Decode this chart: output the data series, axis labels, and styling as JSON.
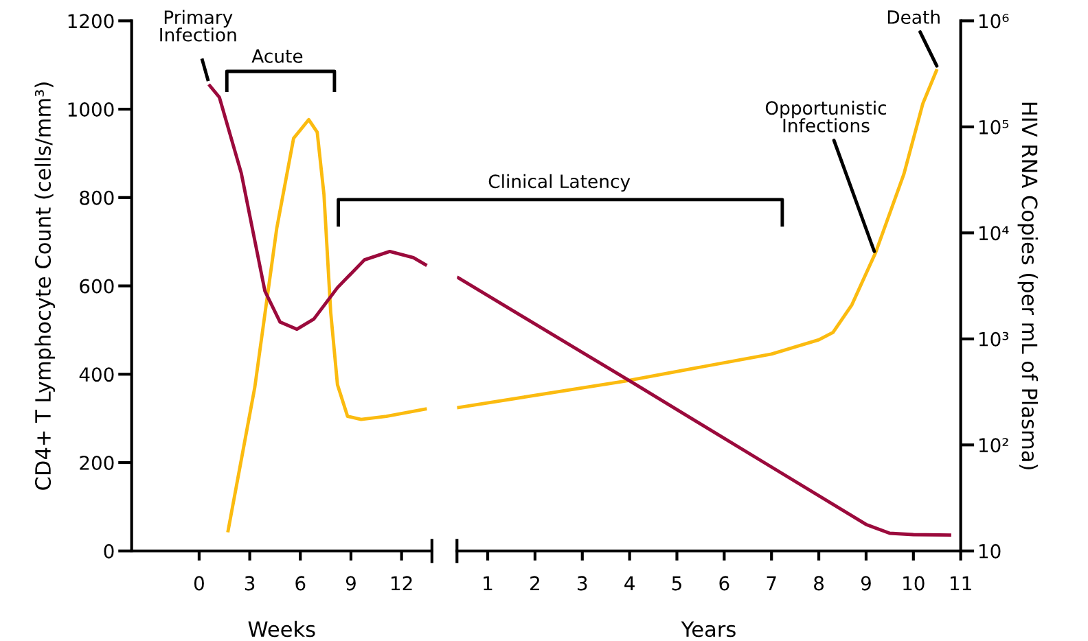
{
  "chart_data": [
    {
      "type": "line",
      "xlabel": "Weeks",
      "ylabel": "CD4+ T Lymphocyte Count (cells/mm³)",
      "log": "y2",
      "xlim": [
        -4,
        13.8
      ],
      "xticks": [
        0,
        3,
        6,
        9,
        12
      ],
      "ylim": [
        0,
        1200
      ],
      "yticks": [
        0,
        200,
        400,
        600,
        800,
        1000,
        1200
      ],
      "y2lim": [
        10,
        1000000
      ],
      "series": [
        {
          "color": "#9b0a3c",
          "x": [
            0.57,
            1.2,
            2.5,
            3.9,
            4.8,
            5.8,
            6.8,
            8.2,
            9.8,
            11.3,
            12.7,
            13.5
          ],
          "values": [
            1056,
            1027,
            855,
            588,
            518,
            502,
            525,
            596,
            659,
            678,
            664,
            646
          ]
        },
        {
          "color": "#fbbb10",
          "axis": "y2",
          "x": [
            1.7,
            3.3,
            4.6,
            5.6,
            6.5,
            7.0,
            7.4,
            7.8,
            8.2,
            8.8,
            9.6,
            11.1,
            13.5
          ],
          "values": [
            15,
            350,
            11000,
            78000,
            117000,
            89000,
            23000,
            1780,
            370,
            186,
            174,
            186,
            219
          ]
        }
      ],
      "annotations": [
        "Primary\nInfection",
        "Acute"
      ]
    },
    {
      "type": "line",
      "xlabel": "Years",
      "y2label": "HIV RNA Copies (per mL of Plasma)",
      "log": "y2",
      "xlim": [
        0.35,
        11
      ],
      "xticks": [
        1,
        2,
        3,
        4,
        5,
        6,
        7,
        8,
        9,
        10,
        11
      ],
      "ylim": [
        0,
        1200
      ],
      "y2lim": [
        10,
        1000000
      ],
      "y2ticks": [
        10,
        {
          "value": 100,
          "label": "10²"
        },
        {
          "value": 1000,
          "label": "10³"
        },
        {
          "value": 10000,
          "label": "10⁴"
        },
        {
          "value": 100000,
          "label": "10⁵"
        },
        {
          "value": 1000000,
          "label": "10⁶"
        }
      ],
      "series": [
        {
          "color": "#9b0a3c",
          "x": [
            0.35,
            4,
            7,
            9.0,
            9.5,
            10,
            10.8
          ],
          "values": [
            620,
            385,
            190,
            60,
            40,
            37,
            36
          ]
        },
        {
          "color": "#fbbb10",
          "axis": "y2",
          "x": [
            0.35,
            3.9,
            7,
            8,
            8.3,
            8.7,
            9.2,
            9.8,
            10.2,
            10.5
          ],
          "values": [
            224,
            400,
            720,
            980,
            1150,
            2100,
            6500,
            36000,
            166000,
            350000
          ]
        }
      ],
      "annotations": [
        {
          "text": "Opportunistic\nInfections",
          "x": 9.2,
          "y": 670
        },
        {
          "text": "Death",
          "x": 10.53,
          "y": 1090
        },
        "Clinical Latency"
      ]
    }
  ]
}
